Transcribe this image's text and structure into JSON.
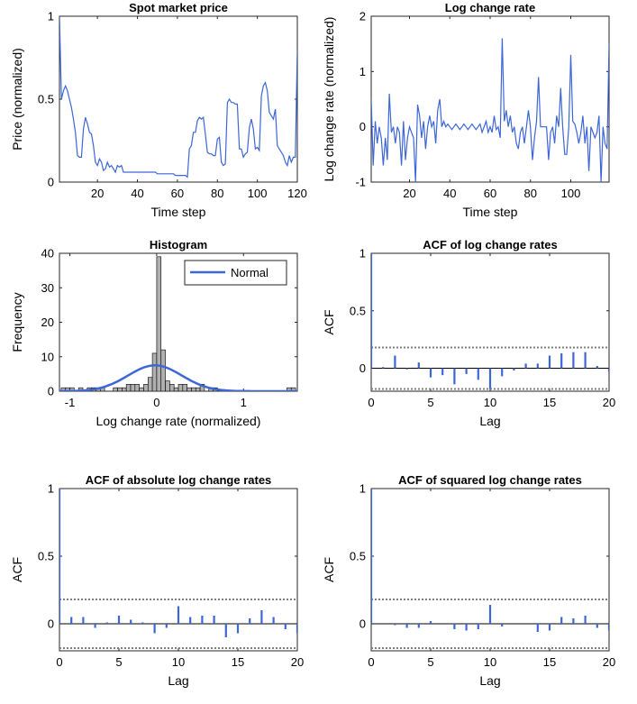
{
  "colors": {
    "series": "#3d66d6",
    "bar_fill": "#b0b0b0",
    "bar_edge": "#000000",
    "conf": "#808080",
    "axis": "#262626"
  },
  "chart_data": [
    {
      "id": "p1",
      "type": "line",
      "title": "Spot market price",
      "xlabel": "Time step",
      "ylabel": "Price (normalized)",
      "xlim": [
        1,
        120
      ],
      "ylim": [
        0,
        1
      ],
      "xticks": [
        "20",
        "40",
        "60",
        "80",
        "100",
        "120"
      ],
      "xtick_values": [
        20,
        40,
        60,
        80,
        100,
        120
      ],
      "yticks": [
        "0",
        "0.5",
        "1"
      ],
      "ytick_values": [
        0,
        0.5,
        1
      ],
      "series": [
        {
          "x": [
            1,
            2,
            3,
            4,
            5,
            6,
            7,
            8,
            9,
            10,
            11,
            12,
            13,
            14,
            15,
            16,
            17,
            18,
            19,
            20,
            21,
            22,
            23,
            24,
            25,
            26,
            27,
            28,
            29,
            30,
            31,
            32,
            33,
            34,
            35,
            36,
            37,
            38,
            39,
            40,
            41,
            42,
            43,
            44,
            45,
            46,
            47,
            48,
            49,
            50,
            51,
            52,
            53,
            54,
            55,
            56,
            57,
            58,
            59,
            60,
            61,
            62,
            63,
            64,
            65,
            66,
            67,
            68,
            69,
            70,
            71,
            72,
            73,
            74,
            75,
            76,
            77,
            78,
            79,
            80,
            81,
            82,
            83,
            84,
            85,
            86,
            87,
            88,
            89,
            90,
            91,
            92,
            93,
            94,
            95,
            96,
            97,
            98,
            99,
            100,
            101,
            102,
            103,
            104,
            105,
            106,
            107,
            108,
            109,
            110,
            111,
            112,
            113,
            114,
            115,
            116,
            117,
            118,
            119,
            120
          ],
          "values": [
            1.0,
            0.5,
            0.55,
            0.58,
            0.55,
            0.5,
            0.45,
            0.38,
            0.3,
            0.16,
            0.15,
            0.15,
            0.32,
            0.39,
            0.35,
            0.3,
            0.29,
            0.22,
            0.12,
            0.1,
            0.14,
            0.12,
            0.07,
            0.08,
            0.12,
            0.09,
            0.1,
            0.08,
            0.06,
            0.1,
            0.09,
            0.1,
            0.06,
            0.06,
            0.06,
            0.06,
            0.06,
            0.06,
            0.06,
            0.06,
            0.06,
            0.06,
            0.06,
            0.06,
            0.06,
            0.06,
            0.06,
            0.06,
            0.06,
            0.05,
            0.05,
            0.05,
            0.05,
            0.05,
            0.05,
            0.05,
            0.05,
            0.05,
            0.04,
            0.04,
            0.04,
            0.04,
            0.04,
            0.04,
            0.03,
            0.2,
            0.22,
            0.3,
            0.3,
            0.37,
            0.39,
            0.38,
            0.39,
            0.29,
            0.18,
            0.17,
            0.17,
            0.16,
            0.16,
            0.26,
            0.27,
            0.12,
            0.1,
            0.11,
            0.48,
            0.5,
            0.48,
            0.48,
            0.47,
            0.47,
            0.2,
            0.2,
            0.15,
            0.17,
            0.18,
            0.33,
            0.38,
            0.32,
            0.2,
            0.21,
            0.19,
            0.52,
            0.58,
            0.6,
            0.55,
            0.42,
            0.4,
            0.38,
            0.44,
            0.22,
            0.2,
            0.18,
            0.16,
            0.12,
            0.1,
            0.16,
            0.12,
            0.15,
            0.15,
            0.8
          ]
        }
      ]
    },
    {
      "id": "p2",
      "type": "line",
      "title": "Log change rate",
      "xlabel": "Time step",
      "ylabel": "Log change rate (normalized)",
      "xlim": [
        1,
        119
      ],
      "ylim": [
        -1,
        2
      ],
      "xticks": [
        "20",
        "40",
        "60",
        "80",
        "100"
      ],
      "xtick_values": [
        20,
        40,
        60,
        80,
        100
      ],
      "yticks": [
        "-1",
        "0",
        "1",
        "2"
      ],
      "ytick_values": [
        -1,
        0,
        1,
        2
      ],
      "series": [
        {
          "x": [
            1,
            2,
            3,
            4,
            5,
            6,
            7,
            8,
            9,
            10,
            11,
            12,
            13,
            14,
            15,
            16,
            17,
            18,
            19,
            20,
            21,
            22,
            23,
            24,
            25,
            26,
            27,
            28,
            29,
            30,
            31,
            32,
            33,
            34,
            35,
            36,
            37,
            38,
            39,
            40,
            41,
            42,
            43,
            44,
            45,
            46,
            47,
            48,
            49,
            50,
            51,
            52,
            53,
            54,
            55,
            56,
            57,
            58,
            59,
            60,
            61,
            62,
            63,
            64,
            65,
            66,
            67,
            68,
            69,
            70,
            71,
            72,
            73,
            74,
            75,
            76,
            77,
            78,
            79,
            80,
            81,
            82,
            83,
            84,
            85,
            86,
            87,
            88,
            89,
            90,
            91,
            92,
            93,
            94,
            95,
            96,
            97,
            98,
            99,
            100,
            101,
            102,
            103,
            104,
            105,
            106,
            107,
            108,
            109,
            110,
            111,
            112,
            113,
            114,
            115,
            116,
            117,
            118,
            119
          ],
          "values": [
            0.5,
            -0.7,
            0.1,
            -0.3,
            0.0,
            -0.2,
            -0.7,
            -0.2,
            -0.6,
            0.6,
            -0.1,
            0.0,
            -0.3,
            0.0,
            -0.1,
            -0.7,
            0.1,
            -0.6,
            -0.2,
            0.0,
            -0.1,
            -0.2,
            -1.0,
            0.4,
            0.2,
            -0.2,
            0.1,
            -0.4,
            0.0,
            0.2,
            0.0,
            0.1,
            -0.3,
            0.3,
            0.5,
            0.0,
            0.1,
            0.0,
            0.05,
            0.0,
            -0.05,
            0.0,
            0.05,
            0.0,
            -0.05,
            0.0,
            0.05,
            0.0,
            -0.05,
            0.0,
            0.05,
            0.0,
            -0.05,
            0.0,
            0.05,
            -0.1,
            0.0,
            0.1,
            -0.1,
            0.0,
            -0.1,
            0.2,
            -0.05,
            0.0,
            -0.2,
            1.6,
            0.1,
            0.3,
            0.0,
            0.2,
            -0.1,
            0.0,
            -0.3,
            -0.4,
            -0.1,
            0.0,
            -0.3,
            0.0,
            0.3,
            0.0,
            -0.6,
            -0.2,
            0.1,
            0.9,
            0.0,
            0.0,
            0.0,
            0.0,
            -0.6,
            -0.1,
            0.0,
            -0.3,
            0.2,
            0.0,
            0.7,
            0.0,
            -0.5,
            -0.5,
            0.0,
            1.3,
            0.1,
            0.05,
            -0.1,
            -0.3,
            -0.1,
            0.2,
            -0.3,
            0.0,
            -0.8,
            0.0,
            -0.1,
            -0.2,
            -0.1,
            0.2,
            -1.0,
            0.0,
            -0.3,
            -0.4,
            1.5
          ]
        }
      ]
    },
    {
      "id": "p3",
      "type": "bar",
      "title": "Histogram",
      "xlabel": "Log change rate (normalized)",
      "ylabel": "Frequency",
      "xlim": [
        -1.12,
        1.62
      ],
      "ylim": [
        0,
        40
      ],
      "xticks": [
        "-1",
        "0",
        "1"
      ],
      "xtick_values": [
        -1,
        0,
        1
      ],
      "yticks": [
        "0",
        "10",
        "20",
        "30",
        "40"
      ],
      "ytick_values": [
        0,
        10,
        20,
        30,
        40
      ],
      "bin_width": 0.05,
      "bin_centers": [
        -1.075,
        -1.025,
        -0.975,
        -0.925,
        -0.875,
        -0.825,
        -0.775,
        -0.725,
        -0.675,
        -0.625,
        -0.575,
        -0.525,
        -0.475,
        -0.425,
        -0.375,
        -0.325,
        -0.275,
        -0.225,
        -0.175,
        -0.125,
        -0.075,
        -0.025,
        0.025,
        0.075,
        0.125,
        0.175,
        0.225,
        0.275,
        0.325,
        0.375,
        0.425,
        0.475,
        0.525,
        0.575,
        0.625,
        0.675,
        0.725,
        0.775,
        0.825,
        0.875,
        0.925,
        0.975,
        1.025,
        1.075,
        1.125,
        1.175,
        1.225,
        1.275,
        1.325,
        1.375,
        1.425,
        1.475,
        1.525,
        1.575
      ],
      "counts": [
        1,
        1,
        1,
        0,
        1,
        0,
        1,
        1,
        1,
        1,
        0,
        0,
        1,
        1,
        1,
        2,
        2,
        2,
        1,
        2,
        4,
        11,
        39,
        12,
        3,
        2,
        1,
        2,
        2,
        1,
        1,
        1,
        2,
        0,
        1,
        1,
        0,
        0,
        0,
        0,
        0,
        0,
        0,
        0,
        0,
        0,
        0,
        0,
        0,
        0,
        0,
        0,
        1,
        1
      ],
      "series": [
        {
          "name": "Normal",
          "type": "line",
          "mean": -0.02,
          "peak": 7.5,
          "sigma": 0.31
        }
      ],
      "legend": "top-right"
    },
    {
      "id": "p4",
      "type": "bar",
      "title": "ACF of log change rates",
      "xlabel": "Lag",
      "ylabel": "ACF",
      "xlim": [
        0,
        20
      ],
      "ylim": [
        -0.2,
        1
      ],
      "xticks": [
        "0",
        "5",
        "10",
        "15",
        "20"
      ],
      "xtick_values": [
        0,
        5,
        10,
        15,
        20
      ],
      "yticks": [
        "0",
        "0.5",
        "1"
      ],
      "ytick_values": [
        0,
        0.5,
        1
      ],
      "lags": [
        0,
        1,
        2,
        3,
        4,
        5,
        6,
        7,
        8,
        9,
        10,
        11,
        12,
        13,
        14,
        15,
        16,
        17,
        18,
        19,
        20
      ],
      "values": [
        1.0,
        0.01,
        0.11,
        -0.01,
        0.05,
        -0.08,
        -0.06,
        -0.14,
        -0.05,
        -0.1,
        -0.18,
        -0.07,
        -0.02,
        0.04,
        0.04,
        0.11,
        0.13,
        0.14,
        0.14,
        0.02,
        -0.03
      ],
      "confidence_bound": 0.18
    },
    {
      "id": "p5",
      "type": "bar",
      "title": "ACF of absolute log change rates",
      "xlabel": "Lag",
      "ylabel": "ACF",
      "xlim": [
        0,
        20
      ],
      "ylim": [
        -0.2,
        1
      ],
      "xticks": [
        "0",
        "5",
        "10",
        "15",
        "20"
      ],
      "xtick_values": [
        0,
        5,
        10,
        15,
        20
      ],
      "yticks": [
        "0",
        "0.5",
        "1"
      ],
      "ytick_values": [
        0,
        0.5,
        1
      ],
      "lags": [
        0,
        1,
        2,
        3,
        4,
        5,
        6,
        7,
        8,
        9,
        10,
        11,
        12,
        13,
        14,
        15,
        16,
        17,
        18,
        19,
        20
      ],
      "values": [
        1.0,
        0.05,
        0.05,
        -0.03,
        0.01,
        0.06,
        0.03,
        0.01,
        -0.07,
        -0.03,
        0.13,
        0.05,
        0.06,
        0.06,
        -0.1,
        -0.07,
        0.04,
        0.1,
        0.05,
        -0.04,
        -0.07
      ],
      "confidence_bound": 0.18
    },
    {
      "id": "p6",
      "type": "bar",
      "title": "ACF of squared log change rates",
      "xlabel": "Lag",
      "ylabel": "ACF",
      "xlim": [
        0,
        20
      ],
      "ylim": [
        -0.2,
        1
      ],
      "xticks": [
        "0",
        "5",
        "10",
        "15",
        "20"
      ],
      "xtick_values": [
        0,
        5,
        10,
        15,
        20
      ],
      "yticks": [
        "0",
        "0.5",
        "1"
      ],
      "ytick_values": [
        0,
        0.5,
        1
      ],
      "lags": [
        0,
        1,
        2,
        3,
        4,
        5,
        6,
        7,
        8,
        9,
        10,
        11,
        12,
        13,
        14,
        15,
        16,
        17,
        18,
        19,
        20
      ],
      "values": [
        1.0,
        0.0,
        -0.01,
        -0.03,
        -0.03,
        0.02,
        0.0,
        -0.04,
        -0.05,
        -0.04,
        0.14,
        -0.02,
        0.0,
        0.0,
        -0.06,
        -0.05,
        0.05,
        0.04,
        0.06,
        -0.03,
        -0.05
      ],
      "confidence_bound": 0.18
    }
  ]
}
